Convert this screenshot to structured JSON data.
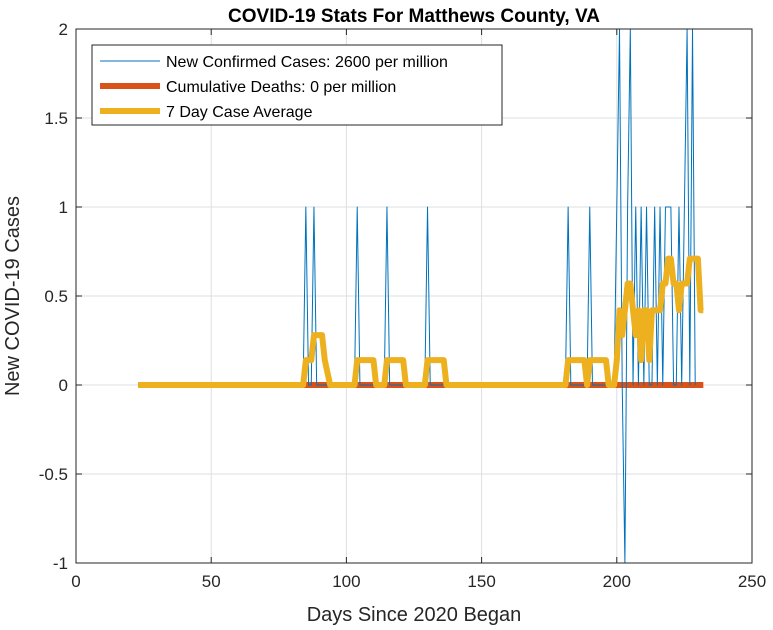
{
  "chart_data": {
    "type": "line",
    "title": "COVID-19 Stats For Matthews County, VA",
    "xlabel": "Days Since 2020 Began",
    "ylabel": "New COVID-19 Cases",
    "xlim": [
      0,
      250
    ],
    "ylim": [
      -1,
      2
    ],
    "xticks": [
      0,
      50,
      100,
      150,
      200,
      250
    ],
    "yticks": [
      -1,
      -0.5,
      0,
      0.5,
      1,
      1.5,
      2
    ],
    "xtick_labels": [
      "0",
      "50",
      "100",
      "150",
      "200",
      "250"
    ],
    "ytick_labels": [
      "-1",
      "-0.5",
      "0",
      "0.5",
      "1",
      "1.5",
      "2"
    ],
    "grid": true,
    "legend_position": "top-left",
    "series": [
      {
        "name": "New Confirmed Cases: 2600 per million",
        "color": "#0072BD",
        "x": [
          23,
          84,
          85,
          86,
          87,
          88,
          89,
          103,
          104,
          105,
          114,
          115,
          116,
          129,
          130,
          131,
          181,
          182,
          183,
          189,
          190,
          191,
          199,
          200,
          201,
          202,
          203,
          204,
          205,
          206,
          207,
          208,
          209,
          210,
          211,
          212,
          213,
          214,
          215,
          216,
          217,
          218,
          219,
          220,
          221,
          222,
          223,
          224,
          225,
          226,
          227,
          228,
          229
        ],
        "y": [
          0,
          0,
          1,
          0,
          0,
          1,
          0,
          0,
          1,
          0,
          0,
          1,
          0,
          0,
          1,
          0,
          0,
          1,
          0,
          0,
          1,
          0,
          0,
          1,
          2,
          0,
          -1,
          1,
          2,
          0,
          1,
          0,
          1,
          0,
          1,
          0,
          0,
          1,
          0,
          1,
          0,
          1,
          1,
          1,
          0,
          0,
          1,
          0,
          1,
          2,
          0,
          2,
          0
        ]
      },
      {
        "name": "Cumulative Deaths: 0 per million",
        "color": "#D95319",
        "x": [
          23,
          232
        ],
        "y": [
          0,
          0
        ]
      },
      {
        "name": "7 Day Case Average",
        "color": "#EDB120",
        "x": [
          23,
          84,
          85,
          87,
          88,
          91,
          92,
          94,
          103,
          104,
          110,
          111,
          114,
          115,
          121,
          122,
          129,
          130,
          136,
          137,
          181,
          182,
          188,
          189,
          190,
          196,
          197,
          199,
          200,
          201,
          202,
          203,
          204,
          205,
          206,
          207,
          208,
          209,
          210,
          211,
          212,
          213,
          214,
          215,
          216,
          217,
          218,
          219,
          220,
          221,
          222,
          223,
          224,
          225,
          226,
          227,
          228,
          229,
          230,
          231,
          232
        ],
        "y": [
          0,
          0,
          0.14,
          0.14,
          0.28,
          0.28,
          0.14,
          0,
          0,
          0.14,
          0.14,
          0,
          0,
          0.14,
          0.14,
          0,
          0,
          0.14,
          0.14,
          0,
          0,
          0.14,
          0.14,
          0,
          0.14,
          0.14,
          0,
          0,
          0.14,
          0.42,
          0.28,
          0.42,
          0.57,
          0.57,
          0.42,
          0.28,
          0.42,
          0.14,
          0.42,
          0.42,
          0.14,
          0.42,
          0.42,
          0.42,
          0.42,
          0.57,
          0.57,
          0.71,
          0.71,
          0.57,
          0.57,
          0.42,
          0.57,
          0.57,
          0.57,
          0.71,
          0.71,
          0.71,
          0.71,
          0.42,
          0.42
        ]
      }
    ]
  }
}
